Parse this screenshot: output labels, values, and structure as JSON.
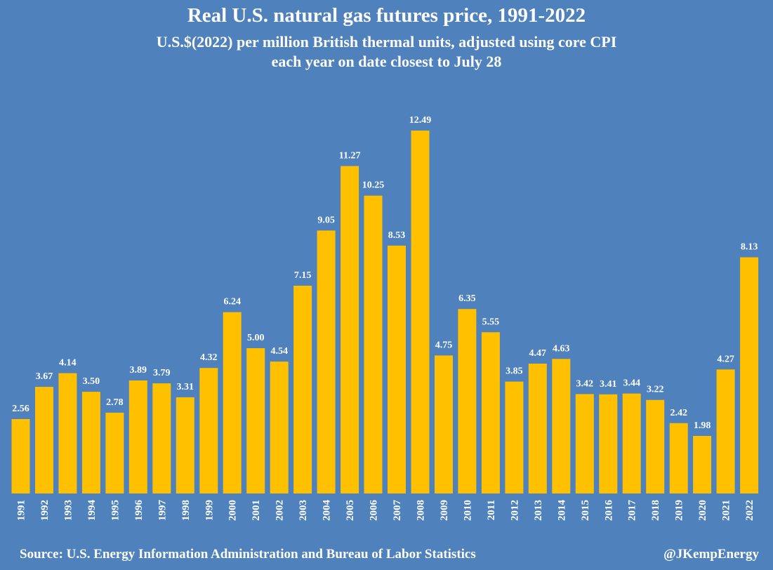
{
  "header": {
    "title": "Real U.S. natural gas futures price, 1991-2022",
    "subtitle_line1": "U.S.$(2022) per million British thermal units, adjusted using core CPI",
    "subtitle_line2": "each year on date closest to July 28"
  },
  "footer": {
    "source": "Source: U.S. Energy Information Administration and Bureau of Labor Statistics",
    "handle": "@JKempEnergy"
  },
  "colors": {
    "background": "#4f81bd",
    "bar": "#ffc000",
    "text": "#ffffff"
  },
  "chart_data": {
    "type": "bar",
    "title": "Real U.S. natural gas futures price, 1991-2022",
    "subtitle": "U.S.$(2022) per million British thermal units, adjusted using core CPI each year on date closest to July 28",
    "xlabel": "",
    "ylabel": "",
    "grid": false,
    "ylim": [
      0,
      12.49
    ],
    "categories": [
      "1991",
      "1992",
      "1993",
      "1994",
      "1995",
      "1996",
      "1997",
      "1998",
      "1999",
      "2000",
      "2001",
      "2002",
      "2003",
      "2004",
      "2005",
      "2006",
      "2007",
      "2008",
      "2009",
      "2010",
      "2011",
      "2012",
      "2013",
      "2014",
      "2015",
      "2016",
      "2017",
      "2018",
      "2019",
      "2020",
      "2021",
      "2022"
    ],
    "values": [
      2.56,
      3.67,
      4.14,
      3.5,
      2.78,
      3.89,
      3.79,
      3.31,
      4.32,
      6.24,
      5.0,
      4.54,
      7.15,
      9.05,
      11.27,
      10.25,
      8.53,
      12.49,
      4.75,
      6.35,
      5.55,
      3.85,
      4.47,
      4.63,
      3.42,
      3.41,
      3.44,
      3.22,
      2.42,
      1.98,
      4.27,
      8.13
    ],
    "data_labels": [
      "2.56",
      "3.67",
      "4.14",
      "3.50",
      "2.78",
      "3.89",
      "3.79",
      "3.31",
      "4.32",
      "6.24",
      "5.00",
      "4.54",
      "7.15",
      "9.05",
      "11.27",
      "10.25",
      "8.53",
      "12.49",
      "4.75",
      "6.35",
      "5.55",
      "3.85",
      "4.47",
      "4.63",
      "3.42",
      "3.41",
      "3.44",
      "3.22",
      "2.42",
      "1.98",
      "4.27",
      "8.13"
    ]
  }
}
